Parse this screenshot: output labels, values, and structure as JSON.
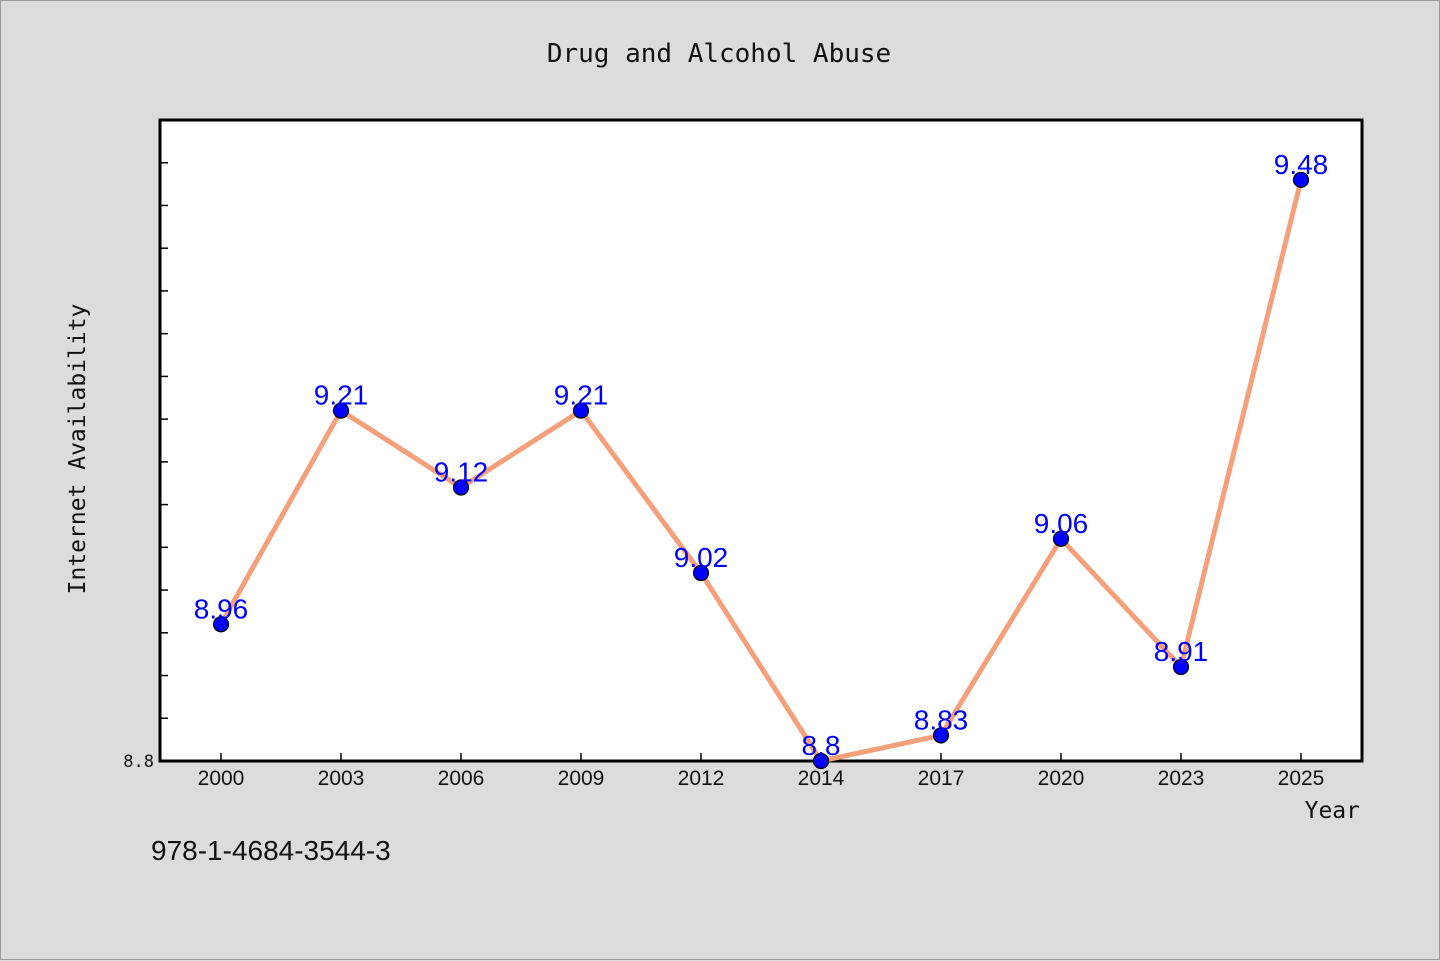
{
  "chart_data": {
    "type": "line",
    "title": "Drug and Alcohol Abuse",
    "xlabel": "Year",
    "ylabel": "Internet Availability",
    "x": [
      "2000",
      "2003",
      "2006",
      "2009",
      "2012",
      "2014",
      "2017",
      "2020",
      "2023",
      "2025"
    ],
    "values": [
      8.96,
      9.21,
      9.12,
      9.21,
      9.02,
      8.8,
      8.83,
      9.06,
      8.91,
      9.48
    ],
    "data_labels": [
      "8.96",
      "9.21",
      "9.12",
      "9.21",
      "9.02",
      "8.8",
      "8.83",
      "9.06",
      "8.91",
      "9.48"
    ],
    "ylim": [
      8.8,
      9.55
    ],
    "ytick_labels": [
      "8.8"
    ],
    "y_minor_tick_step": 0.05,
    "grid": false,
    "legend": "none",
    "colors": {
      "line": "#f5a07a",
      "marker": "#0000ff",
      "data_label": "#0000ff",
      "plot_background": "#ffffff",
      "figure_background": "#dcdcdc"
    }
  },
  "footnote": "978-1-4684-3544-3"
}
